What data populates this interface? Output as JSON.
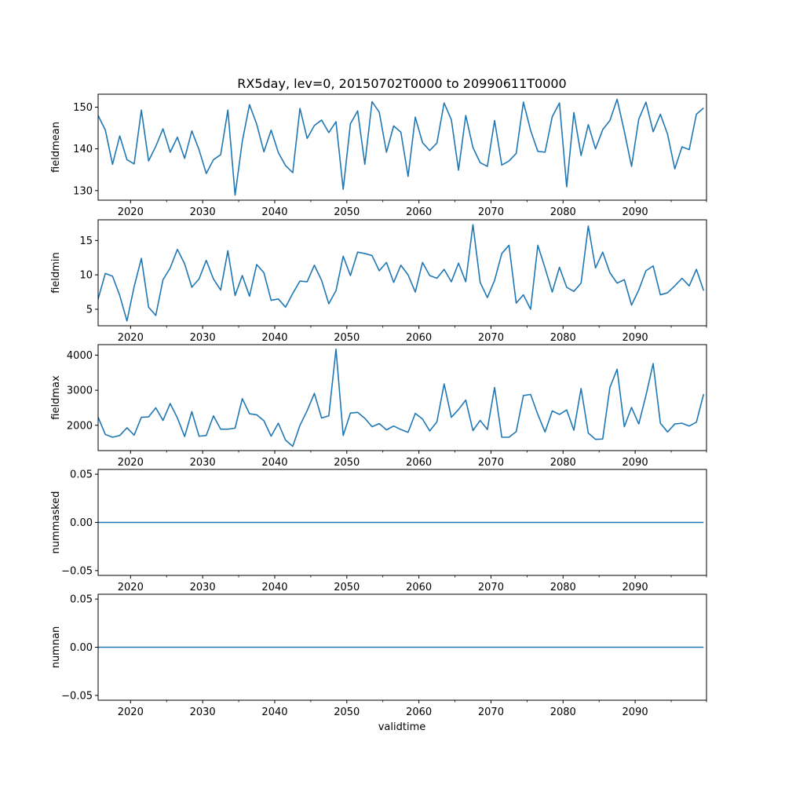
{
  "chart_data": {
    "type": "line",
    "title": "RX5day, lev=0, 20150702T0000 to 20990611T0000",
    "xlabel": "validtime",
    "line_color": "#1f77b4",
    "x": [
      2015.5,
      2016.5,
      2017.5,
      2018.5,
      2019.5,
      2020.5,
      2021.5,
      2022.5,
      2023.5,
      2024.5,
      2025.5,
      2026.5,
      2027.5,
      2028.5,
      2029.5,
      2030.5,
      2031.5,
      2032.5,
      2033.5,
      2034.5,
      2035.5,
      2036.5,
      2037.5,
      2038.5,
      2039.5,
      2040.5,
      2041.5,
      2042.5,
      2043.5,
      2044.5,
      2045.5,
      2046.5,
      2047.5,
      2048.5,
      2049.5,
      2050.5,
      2051.5,
      2052.5,
      2053.5,
      2054.5,
      2055.5,
      2056.5,
      2057.5,
      2058.5,
      2059.5,
      2060.5,
      2061.5,
      2062.5,
      2063.5,
      2064.5,
      2065.5,
      2066.5,
      2067.5,
      2068.5,
      2069.5,
      2070.5,
      2071.5,
      2072.5,
      2073.5,
      2074.5,
      2075.5,
      2076.5,
      2077.5,
      2078.5,
      2079.5,
      2080.5,
      2081.5,
      2082.5,
      2083.5,
      2084.5,
      2085.5,
      2086.5,
      2087.5,
      2088.5,
      2089.5,
      2090.5,
      2091.5,
      2092.5,
      2093.5,
      2094.5,
      2095.5,
      2096.5,
      2097.5,
      2098.5,
      2099.5
    ],
    "x_ticks": [
      2020,
      2030,
      2040,
      2050,
      2060,
      2070,
      2080,
      2090
    ],
    "x_minor_ticks": [
      2025,
      2035,
      2045,
      2055,
      2065,
      2075,
      2085,
      2095,
      2099.9
    ],
    "xlim": [
      2015.5,
      2099.9
    ],
    "series": [
      {
        "name": "fieldmean",
        "ylabel": "fieldmean",
        "ylim": [
          127.7,
          153.1
        ],
        "yticks": [
          130,
          140,
          150
        ],
        "ytick_labels": [
          "130",
          "140",
          "150"
        ],
        "values": [
          148.0,
          144.5,
          136.3,
          143.1,
          137.4,
          136.4,
          149.3,
          137.1,
          140.6,
          144.8,
          139.2,
          142.8,
          137.7,
          144.3,
          139.8,
          134.1,
          137.4,
          138.6,
          149.3,
          128.9,
          141.8,
          150.6,
          145.9,
          139.3,
          144.5,
          139.1,
          136.0,
          134.3,
          149.7,
          142.5,
          145.6,
          146.9,
          143.9,
          146.5,
          130.3,
          146.0,
          149.1,
          136.3,
          151.3,
          148.8,
          139.2,
          145.5,
          144.0,
          133.4,
          147.6,
          141.5,
          139.6,
          141.4,
          151.0,
          147.0,
          134.9,
          148.0,
          140.3,
          136.7,
          135.8,
          146.8,
          136.1,
          137.1,
          138.9,
          151.2,
          144.4,
          139.4,
          139.2,
          147.7,
          151.0,
          130.9,
          148.7,
          138.4,
          145.8,
          140.0,
          144.6,
          146.8,
          151.9,
          144.2,
          135.8,
          147.1,
          151.2,
          144.1,
          148.3,
          143.5,
          135.2,
          140.5,
          139.8,
          148.3,
          149.8
        ]
      },
      {
        "name": "fieldmin",
        "ylabel": "fieldmin",
        "ylim": [
          2.6,
          18.0
        ],
        "yticks": [
          5,
          10,
          15
        ],
        "ytick_labels": [
          "5",
          "10",
          "15"
        ],
        "values": [
          6.5,
          10.2,
          9.8,
          7.0,
          3.3,
          8.3,
          12.4,
          5.3,
          4.1,
          9.3,
          11.0,
          13.7,
          11.6,
          8.2,
          9.4,
          12.1,
          9.4,
          7.8,
          13.5,
          7.0,
          9.9,
          6.9,
          11.5,
          10.3,
          6.3,
          6.5,
          5.3,
          7.3,
          9.1,
          9.0,
          11.4,
          9.2,
          5.8,
          7.7,
          12.7,
          9.9,
          13.3,
          13.1,
          12.8,
          10.6,
          11.8,
          8.9,
          11.4,
          10.0,
          7.5,
          11.8,
          9.9,
          9.5,
          10.8,
          9.0,
          11.7,
          9.0,
          17.3,
          8.9,
          6.7,
          9.2,
          13.1,
          14.3,
          5.9,
          7.1,
          5.0,
          14.3,
          11.0,
          7.5,
          11.1,
          8.2,
          7.6,
          8.8,
          17.1,
          11.0,
          13.3,
          10.3,
          8.8,
          9.3,
          5.6,
          7.8,
          10.6,
          11.3,
          7.1,
          7.4,
          8.4,
          9.5,
          8.4,
          10.8,
          7.7
        ]
      },
      {
        "name": "fieldmax",
        "ylabel": "fieldmax",
        "ylim": [
          1280,
          4300
        ],
        "yticks": [
          2000,
          3000,
          4000
        ],
        "ytick_labels": [
          "2000",
          "3000",
          "4000"
        ],
        "values": [
          2230,
          1740,
          1660,
          1710,
          1930,
          1720,
          2230,
          2240,
          2500,
          2140,
          2620,
          2210,
          1680,
          2390,
          1690,
          1710,
          2270,
          1890,
          1890,
          1920,
          2760,
          2330,
          2300,
          2130,
          1690,
          2060,
          1580,
          1400,
          2000,
          2420,
          2910,
          2210,
          2270,
          4170,
          1710,
          2350,
          2370,
          2200,
          1960,
          2050,
          1870,
          1980,
          1880,
          1800,
          2340,
          2180,
          1840,
          2100,
          3180,
          2230,
          2450,
          2720,
          1850,
          2140,
          1880,
          3080,
          1660,
          1660,
          1820,
          2850,
          2880,
          2310,
          1810,
          2410,
          2310,
          2440,
          1860,
          3050,
          1780,
          1600,
          1610,
          3080,
          3600,
          1960,
          2510,
          2040,
          2850,
          3760,
          2060,
          1810,
          2040,
          2060,
          1980,
          2090,
          2890
        ]
      },
      {
        "name": "nummasked",
        "ylabel": "nummasked",
        "ylim": [
          -0.055,
          0.055
        ],
        "yticks": [
          -0.05,
          0.0,
          0.05
        ],
        "ytick_labels": [
          "−0.05",
          "0.00",
          "0.05"
        ],
        "values": [
          0,
          0,
          0,
          0,
          0,
          0,
          0,
          0,
          0,
          0,
          0,
          0,
          0,
          0,
          0,
          0,
          0,
          0,
          0,
          0,
          0,
          0,
          0,
          0,
          0,
          0,
          0,
          0,
          0,
          0,
          0,
          0,
          0,
          0,
          0,
          0,
          0,
          0,
          0,
          0,
          0,
          0,
          0,
          0,
          0,
          0,
          0,
          0,
          0,
          0,
          0,
          0,
          0,
          0,
          0,
          0,
          0,
          0,
          0,
          0,
          0,
          0,
          0,
          0,
          0,
          0,
          0,
          0,
          0,
          0,
          0,
          0,
          0,
          0,
          0,
          0,
          0,
          0,
          0,
          0,
          0,
          0,
          0,
          0,
          0
        ]
      },
      {
        "name": "numnan",
        "ylabel": "numnan",
        "ylim": [
          -0.055,
          0.055
        ],
        "yticks": [
          -0.05,
          0.0,
          0.05
        ],
        "ytick_labels": [
          "−0.05",
          "0.00",
          "0.05"
        ],
        "values": [
          0,
          0,
          0,
          0,
          0,
          0,
          0,
          0,
          0,
          0,
          0,
          0,
          0,
          0,
          0,
          0,
          0,
          0,
          0,
          0,
          0,
          0,
          0,
          0,
          0,
          0,
          0,
          0,
          0,
          0,
          0,
          0,
          0,
          0,
          0,
          0,
          0,
          0,
          0,
          0,
          0,
          0,
          0,
          0,
          0,
          0,
          0,
          0,
          0,
          0,
          0,
          0,
          0,
          0,
          0,
          0,
          0,
          0,
          0,
          0,
          0,
          0,
          0,
          0,
          0,
          0,
          0,
          0,
          0,
          0,
          0,
          0,
          0,
          0,
          0,
          0,
          0,
          0,
          0,
          0,
          0,
          0,
          0,
          0,
          0
        ]
      }
    ]
  }
}
